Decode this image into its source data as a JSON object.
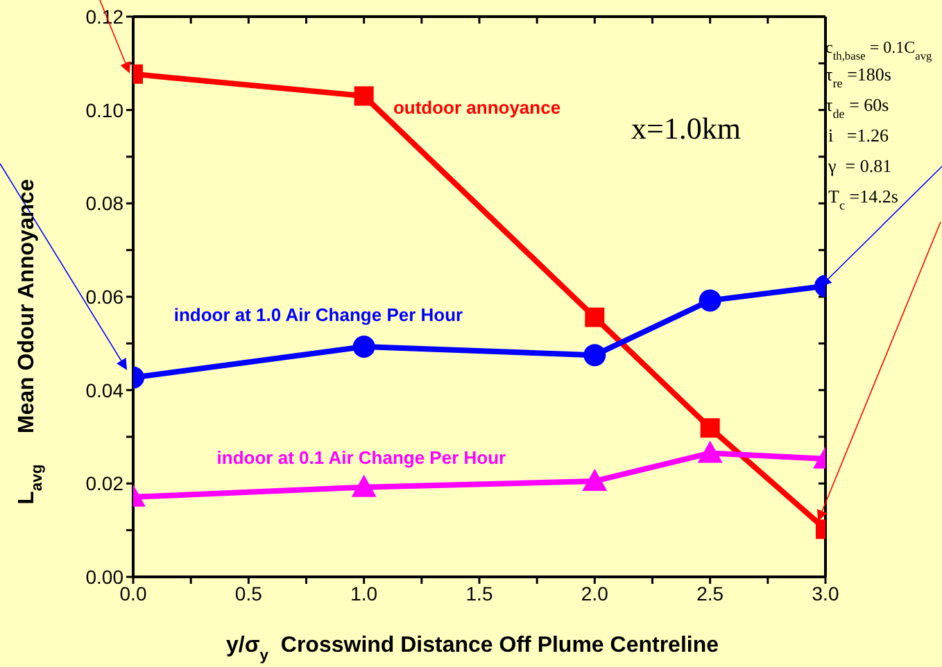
{
  "chart_data": {
    "type": "line",
    "xlabel": "y/σ$_{y}$  Crosswind Distance Off Plume Centreline",
    "ylabel": "L$_{avg}$     Mean Odour Annoyance",
    "x": [
      0,
      1,
      2,
      2.5,
      3
    ],
    "series": [
      {
        "name": "outdoor annoyance",
        "color": "#ff0000",
        "marker": "square",
        "values": [
          0.1077,
          0.103,
          0.0556,
          0.0319,
          0.0102
        ]
      },
      {
        "name": "indoor at 1.0 Air Change Per Hour",
        "color": "#0000ff",
        "marker": "circle",
        "values": [
          0.0427,
          0.0493,
          0.0475,
          0.0592,
          0.0623
        ]
      },
      {
        "name": "indoor at 0.1 Air Change Per Hour",
        "color": "#ff00ff",
        "marker": "triangle",
        "values": [
          0.0171,
          0.0192,
          0.0205,
          0.0265,
          0.0253
        ]
      }
    ],
    "xlim": [
      0,
      3
    ],
    "xticks": [
      {
        "value": 0,
        "label": "0.0"
      },
      {
        "value": 0.25,
        "label": null
      },
      0.5,
      {
        "value": 0.75,
        "label": null
      },
      {
        "value": 1,
        "label": "1.0"
      },
      {
        "value": 1.25,
        "label": null
      },
      1.5,
      {
        "value": 1.75,
        "label": null
      },
      {
        "value": 2,
        "label": "2.0"
      },
      {
        "value": 2.25,
        "label": null
      },
      2.5,
      {
        "value": 2.75,
        "label": null
      },
      {
        "value": 3,
        "label": "3.0"
      }
    ],
    "ylim": [
      0,
      0.12
    ],
    "yticks": [
      {
        "value": 0,
        "label": "0.00"
      },
      {
        "value": 0.01,
        "label": null
      },
      0.02,
      {
        "value": 0.03,
        "label": null
      },
      0.04,
      {
        "value": 0.05,
        "label": null
      },
      0.06,
      {
        "value": 0.07,
        "label": null
      },
      0.08,
      {
        "value": 0.09,
        "label": null
      },
      {
        "value": 0.1,
        "label": "0.10"
      },
      {
        "value": 0.11,
        "label": null
      },
      0.12
    ],
    "line_style": "solid",
    "annotations": [
      "x=1.0km",
      "c$_{th,base}$ = 0.1C$_{avg}$",
      "τ$_{re}$ =180s",
      "τ$_{de}$ = 60s",
      "i   =1.26",
      "γ  = 0.81",
      "T$_{c}$ =14.2s"
    ]
  }
}
